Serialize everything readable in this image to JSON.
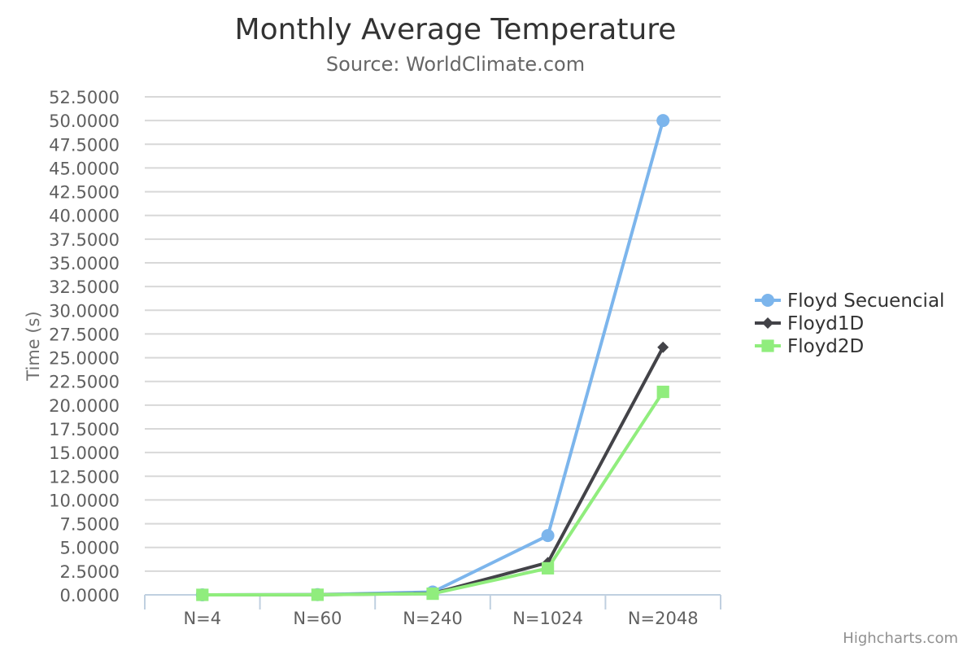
{
  "chart_data": {
    "type": "line",
    "title": "Monthly Average Temperature",
    "subtitle": "Source: WorldClimate.com",
    "ylabel": "Time (s)",
    "xlabel": "",
    "categories": [
      "N=4",
      "N=60",
      "N=240",
      "N=1024",
      "N=2048"
    ],
    "ylim": [
      0,
      52.5
    ],
    "ytick_step": 2.5,
    "ytick_decimals": 4,
    "grid": true,
    "legend_position": "right",
    "series": [
      {
        "name": "Floyd Secuencial",
        "color": "#7cb5ec",
        "marker": "circle",
        "values": [
          0.0,
          0.02,
          0.3,
          6.25,
          50.0
        ]
      },
      {
        "name": "Floyd1D",
        "color": "#434348",
        "marker": "diamond",
        "values": [
          0.0,
          0.01,
          0.15,
          3.4,
          26.1
        ]
      },
      {
        "name": "Floyd2D",
        "color": "#90ed7d",
        "marker": "square",
        "values": [
          0.0,
          0.01,
          0.12,
          2.8,
          21.4
        ]
      }
    ]
  },
  "credits": "Highcharts.com"
}
